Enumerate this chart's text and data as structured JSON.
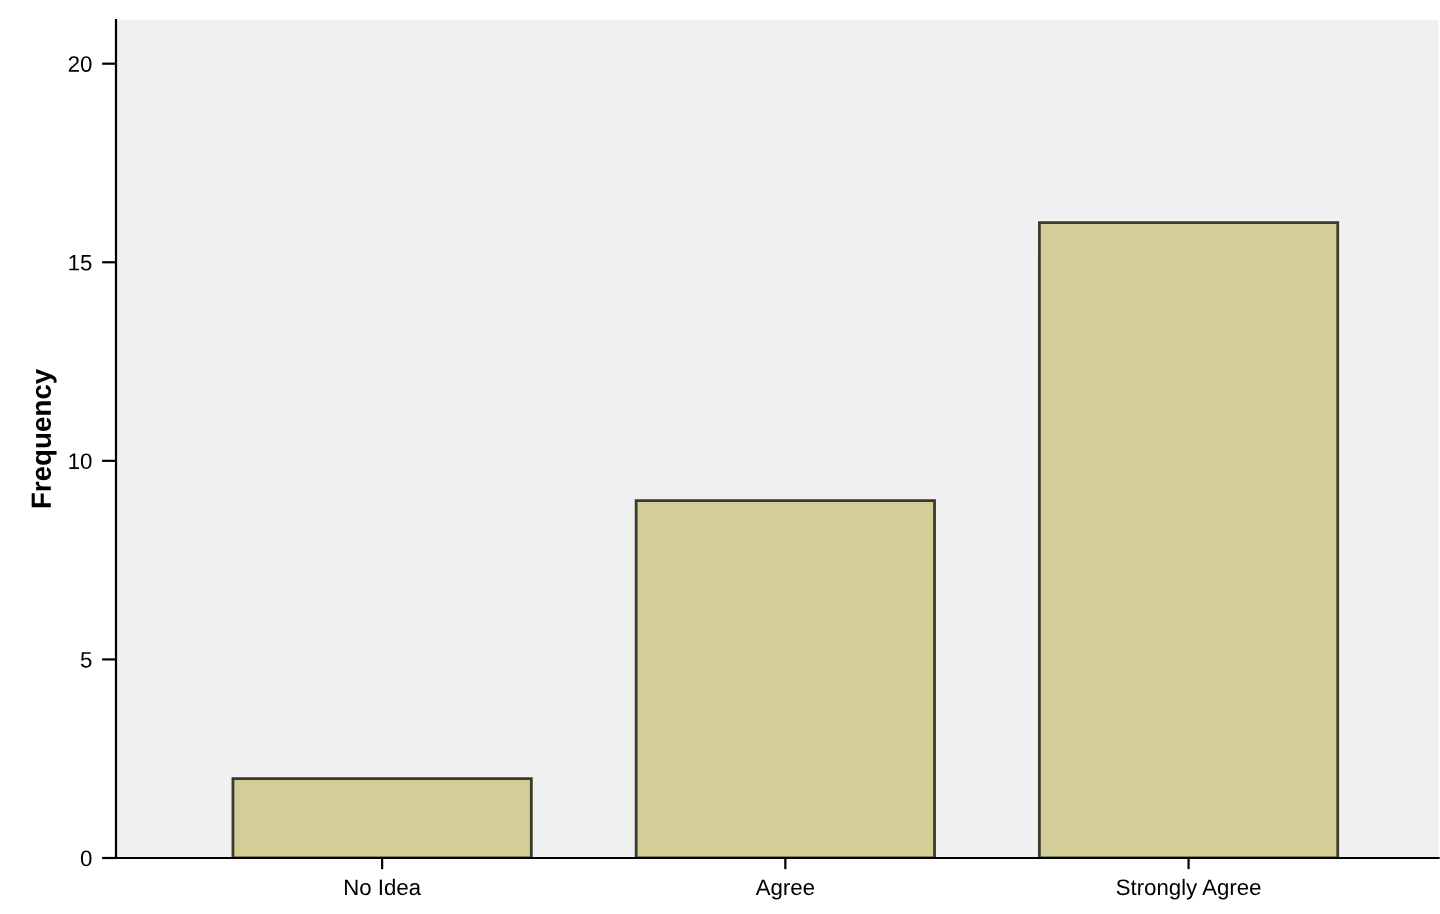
{
  "chart_data": {
    "type": "bar",
    "ylabel": "Frequency",
    "categories": [
      "No Idea",
      "Agree",
      "Strongly Agree"
    ],
    "values": [
      2,
      9,
      16
    ],
    "color": "#d3ce97",
    "ylim": [
      0,
      21.1
    ],
    "yticks": [
      0,
      5,
      10,
      15,
      20
    ],
    "grid": false,
    "legend": false
  }
}
